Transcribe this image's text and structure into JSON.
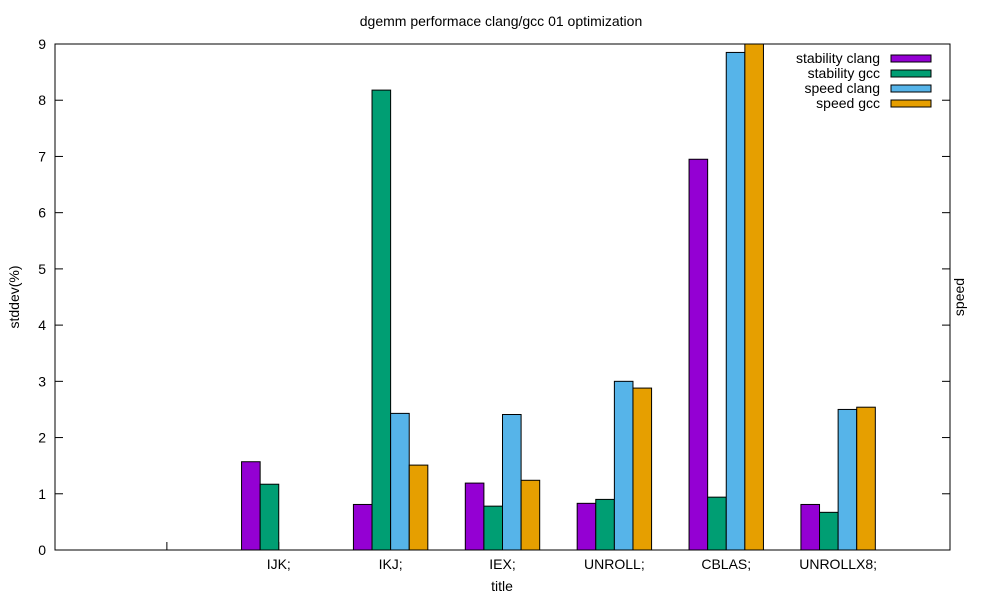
{
  "chart_data": {
    "type": "bar",
    "title": "dgemm performace clang/gcc 01 optimization",
    "xlabel": "title",
    "ylabel": "stddev(%)",
    "y2label": "speed",
    "ylim": [
      0,
      9
    ],
    "yticks": [
      "0",
      "1",
      "2",
      "3",
      "4",
      "5",
      "6",
      "7",
      "8",
      "9"
    ],
    "grid": false,
    "legend_position": "top-right",
    "categories": [
      "",
      "IJK;",
      "IKJ;",
      "IEX;",
      "UNROLL;",
      "CBLAS;",
      "UNROLLX8;"
    ],
    "series": [
      {
        "name": "stability clang",
        "color": "#9400d3",
        "values": [
          null,
          1.57,
          0.81,
          1.19,
          0.83,
          6.95,
          0.81
        ]
      },
      {
        "name": "stability gcc",
        "color": "#009e73",
        "values": [
          null,
          1.17,
          8.18,
          0.78,
          0.9,
          0.94,
          0.67
        ]
      },
      {
        "name": "speed clang",
        "color": "#56b4e9",
        "values": [
          null,
          null,
          2.43,
          2.41,
          3.0,
          8.85,
          2.5
        ]
      },
      {
        "name": "speed gcc",
        "color": "#e69f00",
        "values": [
          null,
          null,
          1.51,
          1.24,
          2.88,
          9.0,
          2.54
        ]
      }
    ]
  }
}
